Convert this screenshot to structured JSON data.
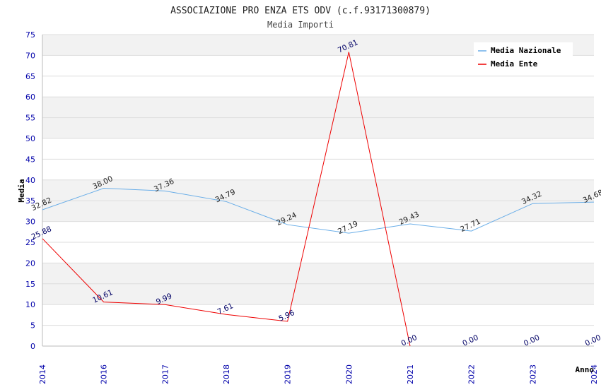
{
  "chart_data": {
    "type": "line",
    "title": "ASSOCIAZIONE PRO ENZA ETS ODV (c.f.93171300879)",
    "subtitle": "Media Importi",
    "xlabel": "Anno",
    "ylabel": "Media",
    "ylim": [
      0,
      75
    ],
    "y_ticks": [
      "0",
      "5",
      "10",
      "15",
      "20",
      "25",
      "30",
      "35",
      "40",
      "45",
      "50",
      "55",
      "60",
      "65",
      "70",
      "75"
    ],
    "categories": [
      "2014",
      "2016",
      "2017",
      "2018",
      "2019",
      "2020",
      "2021",
      "2022",
      "2023",
      "2024"
    ],
    "grid": true,
    "legend_position": "top-right",
    "series": [
      {
        "name": "Media Nazionale",
        "color": "#6aaee8",
        "values": [
          32.82,
          38.0,
          37.36,
          34.79,
          29.24,
          27.19,
          29.43,
          27.71,
          34.32,
          34.68
        ],
        "labels": [
          "32.82",
          "38.00",
          "37.36",
          "34.79",
          "29.24",
          "27.19",
          "29.43",
          "27.71",
          "34.32",
          "34.68"
        ]
      },
      {
        "name": "Media Ente",
        "color": "#ee0000",
        "values": [
          25.88,
          10.61,
          9.99,
          7.61,
          5.96,
          70.81,
          0.0,
          0.0,
          0.0,
          0.0
        ],
        "labels": [
          "25.88",
          "10.61",
          "9.99",
          "7.61",
          "5.96",
          "70.81",
          "0.00",
          "0.00",
          "0.00",
          "0.00"
        ],
        "line_points": 7
      }
    ]
  }
}
